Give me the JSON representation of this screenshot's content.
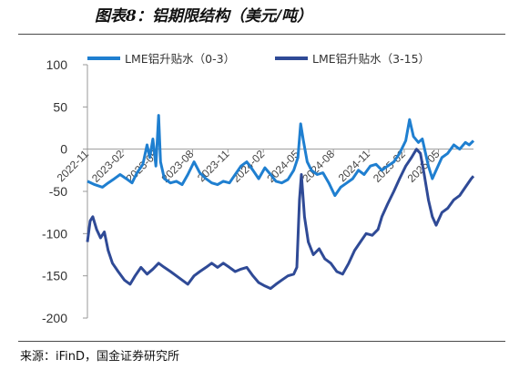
{
  "header": {
    "title": "图表8：铝期限结构（美元/吨）"
  },
  "footer": {
    "source": "来源：iFinD，国金证券研究所"
  },
  "colors": {
    "series_0_3": "#1f7fd0",
    "series_3_15": "#2f4a96",
    "axis": "#999999"
  },
  "chart_data": {
    "type": "line",
    "ylim": [
      -200,
      100
    ],
    "yticks": [
      100,
      50,
      0,
      -50,
      -100,
      -150,
      -200
    ],
    "x_tick_labels": [
      "2022-11",
      "2023-02",
      "2023-05",
      "2023-08",
      "2023-11",
      "2024-02",
      "2024-05",
      "2024-08",
      "2024-11",
      "2025-02",
      "2025-05"
    ],
    "x_range": [
      "2022-11-01",
      "2025-07-31"
    ],
    "legend": {
      "placement": "top",
      "entries": [
        "LME铝升贴水（0-3）",
        "LME铝升贴水（3-15）"
      ]
    },
    "grid": false,
    "series": [
      {
        "name": "LME铝升贴水（0-3）",
        "points": [
          [
            "2022-11-01",
            -38
          ],
          [
            "2022-11-20",
            -42
          ],
          [
            "2022-12-10",
            -45
          ],
          [
            "2022-12-25",
            -40
          ],
          [
            "2023-01-10",
            -35
          ],
          [
            "2023-01-25",
            -30
          ],
          [
            "2023-02-10",
            -35
          ],
          [
            "2023-02-25",
            -40
          ],
          [
            "2023-03-10",
            -28
          ],
          [
            "2023-03-25",
            -18
          ],
          [
            "2023-04-05",
            5
          ],
          [
            "2023-04-12",
            -10
          ],
          [
            "2023-04-20",
            12
          ],
          [
            "2023-04-28",
            -20
          ],
          [
            "2023-05-05",
            40
          ],
          [
            "2023-05-10",
            -15
          ],
          [
            "2023-05-20",
            -35
          ],
          [
            "2023-06-05",
            -40
          ],
          [
            "2023-06-20",
            -38
          ],
          [
            "2023-07-05",
            -42
          ],
          [
            "2023-07-20",
            -30
          ],
          [
            "2023-08-05",
            -15
          ],
          [
            "2023-08-20",
            -28
          ],
          [
            "2023-09-05",
            -35
          ],
          [
            "2023-09-20",
            -40
          ],
          [
            "2023-10-05",
            -42
          ],
          [
            "2023-10-20",
            -38
          ],
          [
            "2023-11-05",
            -40
          ],
          [
            "2023-11-20",
            -30
          ],
          [
            "2023-12-05",
            -20
          ],
          [
            "2023-12-20",
            -15
          ],
          [
            "2024-01-05",
            -25
          ],
          [
            "2024-01-20",
            -35
          ],
          [
            "2024-02-05",
            -22
          ],
          [
            "2024-02-20",
            -30
          ],
          [
            "2024-03-05",
            -38
          ],
          [
            "2024-03-20",
            -40
          ],
          [
            "2024-04-05",
            -36
          ],
          [
            "2024-04-20",
            -25
          ],
          [
            "2024-05-01",
            -10
          ],
          [
            "2024-05-08",
            30
          ],
          [
            "2024-05-15",
            10
          ],
          [
            "2024-05-25",
            -15
          ],
          [
            "2024-06-05",
            -25
          ],
          [
            "2024-06-20",
            -30
          ],
          [
            "2024-07-05",
            -28
          ],
          [
            "2024-07-20",
            -40
          ],
          [
            "2024-08-05",
            -55
          ],
          [
            "2024-08-20",
            -45
          ],
          [
            "2024-09-05",
            -40
          ],
          [
            "2024-09-20",
            -35
          ],
          [
            "2024-10-05",
            -25
          ],
          [
            "2024-10-20",
            -30
          ],
          [
            "2024-11-05",
            -20
          ],
          [
            "2024-11-20",
            -18
          ],
          [
            "2024-12-05",
            -25
          ],
          [
            "2024-12-20",
            -20
          ],
          [
            "2025-01-05",
            -15
          ],
          [
            "2025-01-20",
            -5
          ],
          [
            "2025-02-05",
            10
          ],
          [
            "2025-02-15",
            35
          ],
          [
            "2025-02-25",
            15
          ],
          [
            "2025-03-10",
            8
          ],
          [
            "2025-03-20",
            12
          ],
          [
            "2025-04-05",
            -20
          ],
          [
            "2025-04-15",
            -35
          ],
          [
            "2025-04-25",
            -25
          ],
          [
            "2025-05-10",
            -10
          ],
          [
            "2025-05-25",
            -5
          ],
          [
            "2025-06-10",
            5
          ],
          [
            "2025-06-25",
            0
          ],
          [
            "2025-07-10",
            8
          ],
          [
            "2025-07-20",
            5
          ],
          [
            "2025-07-31",
            10
          ]
        ]
      },
      {
        "name": "LME铝升贴水（3-15）",
        "points": [
          [
            "2022-11-01",
            -110
          ],
          [
            "2022-11-08",
            -85
          ],
          [
            "2022-11-15",
            -80
          ],
          [
            "2022-11-25",
            -95
          ],
          [
            "2022-12-05",
            -105
          ],
          [
            "2022-12-15",
            -98
          ],
          [
            "2022-12-25",
            -120
          ],
          [
            "2023-01-05",
            -135
          ],
          [
            "2023-01-20",
            -145
          ],
          [
            "2023-02-05",
            -155
          ],
          [
            "2023-02-20",
            -160
          ],
          [
            "2023-03-05",
            -150
          ],
          [
            "2023-03-20",
            -140
          ],
          [
            "2023-04-05",
            -148
          ],
          [
            "2023-04-20",
            -142
          ],
          [
            "2023-05-05",
            -135
          ],
          [
            "2023-05-20",
            -140
          ],
          [
            "2023-06-05",
            -145
          ],
          [
            "2023-06-20",
            -150
          ],
          [
            "2023-07-05",
            -155
          ],
          [
            "2023-07-20",
            -160
          ],
          [
            "2023-08-05",
            -150
          ],
          [
            "2023-08-20",
            -145
          ],
          [
            "2023-09-05",
            -140
          ],
          [
            "2023-09-20",
            -135
          ],
          [
            "2023-10-05",
            -140
          ],
          [
            "2023-10-20",
            -135
          ],
          [
            "2023-11-05",
            -140
          ],
          [
            "2023-11-20",
            -145
          ],
          [
            "2023-12-05",
            -142
          ],
          [
            "2023-12-20",
            -140
          ],
          [
            "2024-01-05",
            -150
          ],
          [
            "2024-01-20",
            -158
          ],
          [
            "2024-02-05",
            -162
          ],
          [
            "2024-02-20",
            -165
          ],
          [
            "2024-03-05",
            -160
          ],
          [
            "2024-03-20",
            -155
          ],
          [
            "2024-04-05",
            -150
          ],
          [
            "2024-04-20",
            -148
          ],
          [
            "2024-04-28",
            -140
          ],
          [
            "2024-05-05",
            -60
          ],
          [
            "2024-05-10",
            -30
          ],
          [
            "2024-05-18",
            -80
          ],
          [
            "2024-05-28",
            -110
          ],
          [
            "2024-06-10",
            -125
          ],
          [
            "2024-06-25",
            -118
          ],
          [
            "2024-07-10",
            -130
          ],
          [
            "2024-07-25",
            -135
          ],
          [
            "2024-08-10",
            -145
          ],
          [
            "2024-08-25",
            -148
          ],
          [
            "2024-09-10",
            -135
          ],
          [
            "2024-09-25",
            -120
          ],
          [
            "2024-10-10",
            -110
          ],
          [
            "2024-10-25",
            -100
          ],
          [
            "2024-11-10",
            -102
          ],
          [
            "2024-11-25",
            -95
          ],
          [
            "2024-12-05",
            -80
          ],
          [
            "2024-12-20",
            -65
          ],
          [
            "2025-01-05",
            -50
          ],
          [
            "2025-01-20",
            -35
          ],
          [
            "2025-02-05",
            -20
          ],
          [
            "2025-02-20",
            -10
          ],
          [
            "2025-03-05",
            0
          ],
          [
            "2025-03-15",
            -5
          ],
          [
            "2025-03-25",
            -30
          ],
          [
            "2025-04-05",
            -60
          ],
          [
            "2025-04-15",
            -80
          ],
          [
            "2025-04-25",
            -90
          ],
          [
            "2025-05-10",
            -75
          ],
          [
            "2025-05-25",
            -70
          ],
          [
            "2025-06-10",
            -60
          ],
          [
            "2025-06-25",
            -55
          ],
          [
            "2025-07-10",
            -45
          ],
          [
            "2025-07-25",
            -35
          ],
          [
            "2025-07-31",
            -32
          ]
        ]
      }
    ]
  }
}
